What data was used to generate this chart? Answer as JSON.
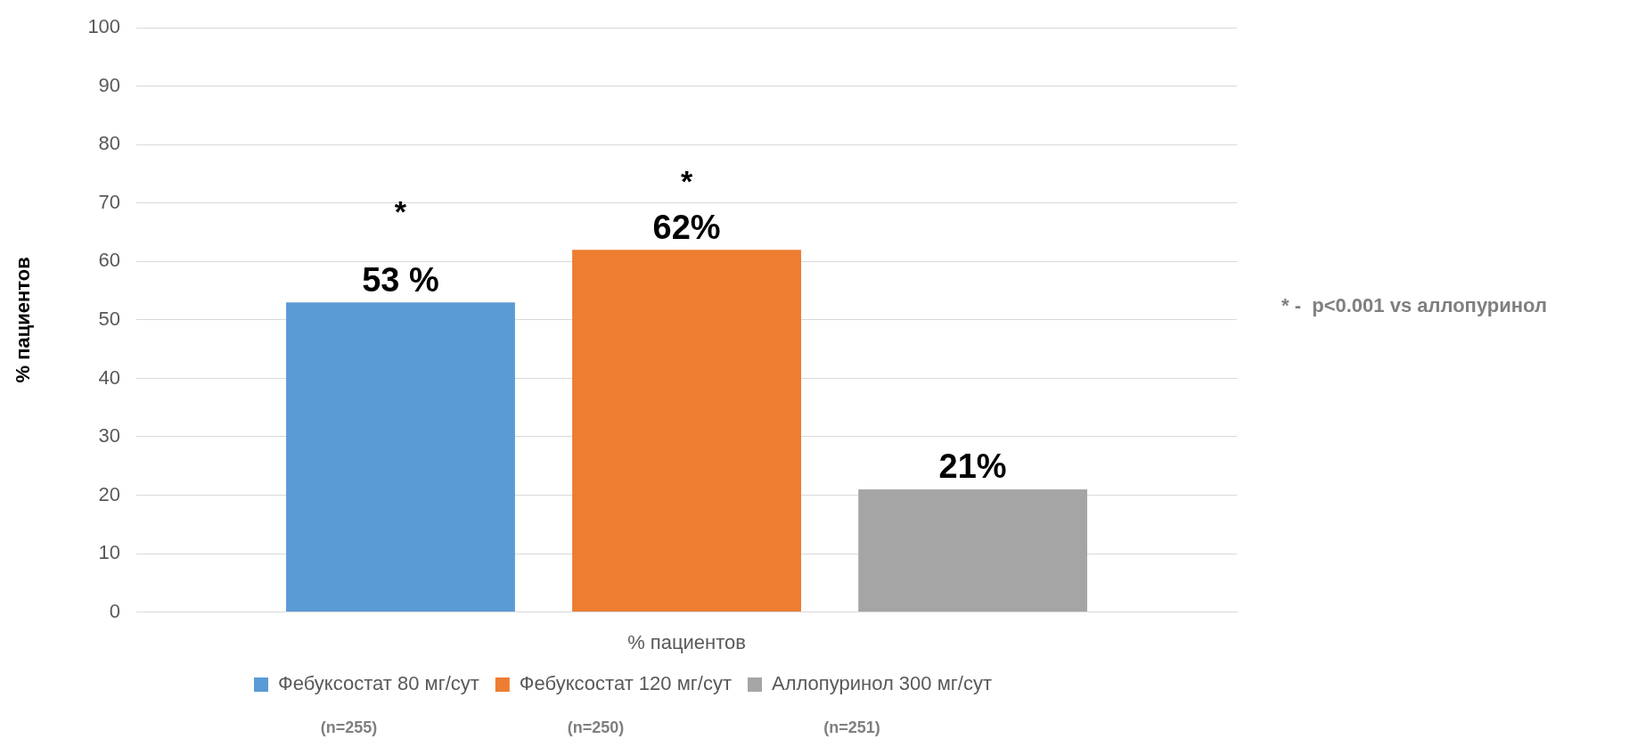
{
  "chart_data": {
    "type": "bar",
    "ylabel": "% пациентов",
    "xlabel": "% пациентов",
    "categories": [
      null
    ],
    "series": [
      {
        "name": "Фебуксостат 80 мг/сут",
        "color": "#5b9bd5",
        "values": [
          53
        ],
        "value_labels": [
          "53 %"
        ]
      },
      {
        "name": "Фебуксостат 120 мг/сут",
        "color": "#ed7d31",
        "values": [
          62
        ],
        "value_labels": [
          "62%"
        ]
      },
      {
        "name": "Аллопуринол 300 мг/сут",
        "color": "#a5a5a5",
        "values": [
          21
        ],
        "value_labels": [
          "21%"
        ]
      }
    ],
    "ylim": [
      0,
      100
    ],
    "yticks": [
      0,
      10,
      20,
      30,
      40,
      50,
      60,
      70,
      80,
      90,
      100
    ],
    "grid": "y",
    "legend": "bottom",
    "tick_labels": "y",
    "annotations": [
      "*",
      "*",
      "* -  p<0.001 vs аллопуринол",
      "(n=255)",
      "(n=250)",
      "(n=251)"
    ]
  }
}
